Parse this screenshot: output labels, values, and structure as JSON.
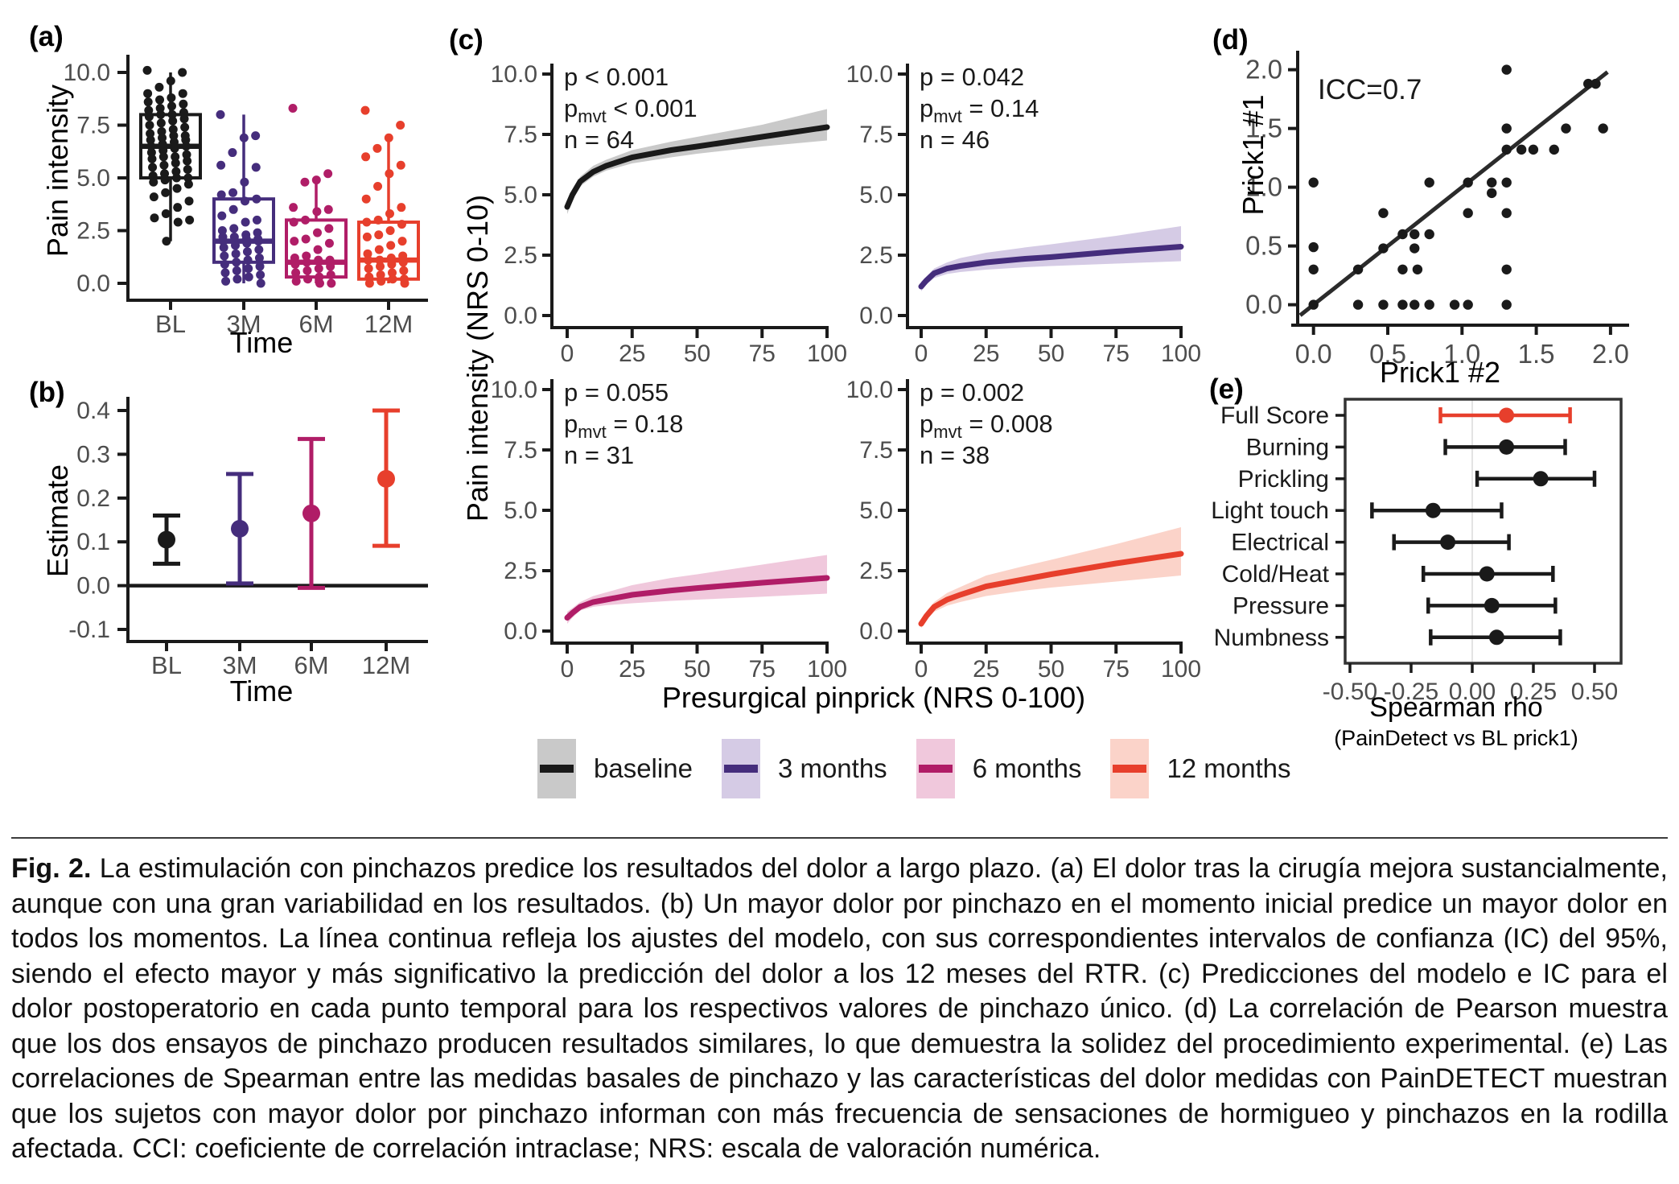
{
  "figure": {
    "legend": {
      "items": [
        {
          "label": "baseline",
          "line_color": "#1a1a1a",
          "band_color": "#c9c9c9"
        },
        {
          "label": "3 months",
          "line_color": "#452d7c",
          "band_color": "#d5cbe5"
        },
        {
          "label": "6 months",
          "line_color": "#b01d67",
          "band_color": "#f0c8dc"
        },
        {
          "label": "12 months",
          "line_color": "#e73f2c",
          "band_color": "#fbd3c9"
        }
      ]
    },
    "caption": {
      "label": "Fig. 2.",
      "text": "La estimulación con pinchazos predice los resultados del dolor a largo plazo. (a) El dolor tras la cirugía mejora sustancialmente, aunque con una gran variabilidad en los resultados. (b) Un mayor dolor por pinchazo en el momento inicial predice un mayor dolor en todos los momentos. La línea continua refleja los ajustes del modelo, con sus correspondientes intervalos de confianza (IC) del 95%, siendo el efecto mayor y más significativo la predicción del dolor a los 12 meses del RTR. (c) Predicciones del modelo e IC para el dolor postoperatorio en cada punto temporal para los respectivos valores de pinchazo único. (d) La correlación de Pearson muestra que los dos ensayos de pinchazo producen resultados similares, lo que demuestra la solidez del procedimiento experimental. (e) Las correlaciones de Spearman entre las medidas basales de pinchazo y las características del dolor medidas con PainDETECT muestran que los sujetos con mayor dolor por pinchazo informan con más frecuencia de sensaciones de hormigueo y pinchazos en la rodilla afectada. CCI: coeficiente de correlación intraclase; NRS: escala de valoración numérica."
    }
  },
  "chart_data": [
    {
      "id": "a",
      "tag": "(a)",
      "type": "box",
      "xlabel": "Time",
      "ylabel": "Pain intensity",
      "categories": [
        "BL",
        "3M",
        "6M",
        "12M"
      ],
      "ylim": [
        -0.5,
        10.5
      ],
      "yticks": [
        0,
        2.5,
        5,
        7.5,
        10
      ],
      "ytick_labels": [
        "0.0",
        "2.5",
        "5.0",
        "7.5",
        "10.0"
      ],
      "colors": [
        "#1a1a1a",
        "#452d7c",
        "#b01d67",
        "#e73f2c"
      ],
      "boxes": [
        {
          "label": "BL",
          "whislo": 2.0,
          "q1": 5.0,
          "med": 6.5,
          "q3": 8.0,
          "whishi": 10.0
        },
        {
          "label": "3M",
          "whislo": 0.0,
          "q1": 1.0,
          "med": 2.0,
          "q3": 4.0,
          "whishi": 8.0
        },
        {
          "label": "6M",
          "whislo": 0.0,
          "q1": 0.3,
          "med": 1.0,
          "q3": 3.0,
          "whishi": 5.0
        },
        {
          "label": "12M",
          "whislo": 0.0,
          "q1": 0.2,
          "med": 1.1,
          "q3": 2.9,
          "whishi": 6.9
        }
      ],
      "points": {
        "BL": [
          10.1,
          10.0,
          9.6,
          9.3,
          9.0,
          9.0,
          8.8,
          8.7,
          8.6,
          8.5,
          8.4,
          8.3,
          8.2,
          8.1,
          8.0,
          8.0,
          7.9,
          7.8,
          7.7,
          7.6,
          7.5,
          7.4,
          7.3,
          7.2,
          7.1,
          7.0,
          7.0,
          6.9,
          6.8,
          6.8,
          6.7,
          6.6,
          6.5,
          6.5,
          6.4,
          6.3,
          6.2,
          6.1,
          6.0,
          6.0,
          5.9,
          5.8,
          5.7,
          5.6,
          5.5,
          5.4,
          5.3,
          5.2,
          5.1,
          5.0,
          5.0,
          4.9,
          4.8,
          4.7,
          4.5,
          4.3,
          4.1,
          3.9,
          3.6,
          3.3,
          3.1,
          3.0,
          2.9,
          2.0
        ],
        "3M": [
          8.0,
          7.0,
          6.9,
          6.2,
          5.6,
          5.5,
          4.8,
          4.3,
          4.2,
          4.0,
          3.9,
          3.5,
          3.2,
          3.0,
          2.9,
          2.6,
          2.5,
          2.4,
          2.3,
          2.2,
          2.2,
          2.1,
          2.1,
          2.0,
          2.0,
          2.0,
          1.9,
          1.8,
          1.7,
          1.6,
          1.5,
          1.4,
          1.3,
          1.2,
          1.1,
          1.0,
          0.9,
          0.8,
          0.7,
          0.6,
          0.5,
          0.4,
          0.3,
          0.2,
          0.1,
          0.0
        ],
        "6M": [
          8.3,
          5.2,
          4.9,
          4.8,
          3.6,
          3.5,
          3.4,
          3.0,
          2.9,
          2.6,
          2.4,
          2.1,
          2.0,
          1.9,
          1.6,
          1.3,
          1.2,
          1.1,
          1.1,
          1.0,
          0.9,
          0.8,
          0.7,
          0.6,
          0.5,
          0.4,
          0.3,
          0.2,
          0.1,
          0.0,
          0.0
        ],
        "12M": [
          8.2,
          7.5,
          6.9,
          6.4,
          6.0,
          5.6,
          5.2,
          4.6,
          4.0,
          3.6,
          3.3,
          3.0,
          2.9,
          2.8,
          2.5,
          2.3,
          2.2,
          2.0,
          1.8,
          1.6,
          1.4,
          1.3,
          1.2,
          1.1,
          1.1,
          1.0,
          0.9,
          0.8,
          0.7,
          0.6,
          0.5,
          0.4,
          0.3,
          0.2,
          0.2,
          0.1,
          0.0,
          0.0
        ]
      }
    },
    {
      "id": "b",
      "tag": "(b)",
      "type": "pointrange",
      "xlabel": "Time",
      "ylabel": "Estimate",
      "categories": [
        "BL",
        "3M",
        "6M",
        "12M"
      ],
      "ylim": [
        -0.15,
        0.43
      ],
      "yticks": [
        -0.1,
        0,
        0.1,
        0.2,
        0.3,
        0.4
      ],
      "ytick_labels": [
        "-0.1",
        "0.0",
        "0.1",
        "0.2",
        "0.3",
        "0.4"
      ],
      "refline": 0,
      "colors": [
        "#1a1a1a",
        "#452d7c",
        "#b01d67",
        "#e73f2c"
      ],
      "values": [
        {
          "est": 0.105,
          "lo": 0.05,
          "hi": 0.16
        },
        {
          "est": 0.13,
          "lo": 0.005,
          "hi": 0.255
        },
        {
          "est": 0.165,
          "lo": -0.005,
          "hi": 0.335
        },
        {
          "est": 0.244,
          "lo": 0.091,
          "hi": 0.4
        }
      ]
    },
    {
      "id": "c",
      "tag": "(c)",
      "type": "line-ci",
      "xlabel": "Presurgical pinprick (NRS 0-100)",
      "ylabel": "Pain intensity (NRS 0-10)",
      "x": [
        0,
        2,
        5,
        10,
        15,
        25,
        40,
        50,
        75,
        100
      ],
      "xticks": [
        0,
        25,
        50,
        75,
        100
      ],
      "xtick_labels": [
        "0",
        "25",
        "50",
        "75",
        "100"
      ],
      "yticks": [
        0,
        2.5,
        5,
        7.5,
        10
      ],
      "ytick_labels": [
        "0.0",
        "2.5",
        "5.0",
        "7.5",
        "10.0"
      ],
      "subplots": [
        {
          "name": "baseline",
          "color": "#1a1a1a",
          "band": "#c9c9c9",
          "stats": [
            {
              "b": "p",
              "s": "",
              "r": " < 0.001"
            },
            {
              "b": "p",
              "s": "mvt",
              "r": " < 0.001"
            },
            {
              "b": "n",
              "s": "",
              "r": " = 64"
            }
          ],
          "y": [
            4.5,
            5.0,
            5.55,
            5.95,
            6.2,
            6.55,
            6.85,
            7.0,
            7.4,
            7.8
          ],
          "lo": [
            4.2,
            4.75,
            5.35,
            5.75,
            6.0,
            6.3,
            6.55,
            6.7,
            7.0,
            7.25
          ],
          "hi": [
            4.75,
            5.2,
            5.75,
            6.2,
            6.45,
            6.85,
            7.2,
            7.4,
            7.9,
            8.55
          ]
        },
        {
          "name": "3 months",
          "color": "#452d7c",
          "band": "#d5cbe5",
          "stats": [
            {
              "b": "p",
              "s": "",
              "r": " = 0.042"
            },
            {
              "b": "p",
              "s": "mvt",
              "r": " = 0.14"
            },
            {
              "b": "n",
              "s": "",
              "r": " = 46"
            }
          ],
          "y": [
            1.2,
            1.45,
            1.75,
            1.95,
            2.05,
            2.2,
            2.35,
            2.42,
            2.65,
            2.85
          ],
          "lo": [
            1.0,
            1.28,
            1.55,
            1.72,
            1.8,
            1.9,
            2.0,
            2.05,
            2.15,
            2.25
          ],
          "hi": [
            1.4,
            1.62,
            1.95,
            2.2,
            2.38,
            2.6,
            2.82,
            2.95,
            3.3,
            3.7
          ]
        },
        {
          "name": "6 months",
          "color": "#b01d67",
          "band": "#f0c8dc",
          "stats": [
            {
              "b": "p",
              "s": "",
              "r": " = 0.055"
            },
            {
              "b": "p",
              "s": "mvt",
              "r": " = 0.18"
            },
            {
              "b": "n",
              "s": "",
              "r": " = 31"
            }
          ],
          "y": [
            0.55,
            0.75,
            1.0,
            1.2,
            1.3,
            1.5,
            1.68,
            1.78,
            2.0,
            2.2
          ],
          "lo": [
            0.3,
            0.55,
            0.85,
            1.0,
            1.07,
            1.15,
            1.25,
            1.3,
            1.42,
            1.55
          ],
          "hi": [
            0.8,
            0.95,
            1.2,
            1.45,
            1.6,
            1.9,
            2.2,
            2.35,
            2.75,
            3.15
          ]
        },
        {
          "name": "12 months",
          "color": "#e73f2c",
          "band": "#fbd3c9",
          "stats": [
            {
              "b": "p",
              "s": "",
              "r": " = 0.002"
            },
            {
              "b": "p",
              "s": "mvt",
              "r": " = 0.008"
            },
            {
              "b": "n",
              "s": "",
              "r": " = 38"
            }
          ],
          "y": [
            0.3,
            0.62,
            1.0,
            1.3,
            1.5,
            1.85,
            2.15,
            2.35,
            2.8,
            3.2
          ],
          "lo": [
            0.12,
            0.45,
            0.8,
            1.05,
            1.2,
            1.45,
            1.68,
            1.8,
            2.05,
            2.3
          ],
          "hi": [
            0.5,
            0.82,
            1.2,
            1.58,
            1.82,
            2.3,
            2.7,
            2.95,
            3.6,
            4.3
          ]
        }
      ]
    },
    {
      "id": "d",
      "tag": "(d)",
      "type": "scatter",
      "xlabel": "Prick1 #2",
      "ylabel": "Prick1 #1",
      "annotation": "ICC=0.7",
      "xticks": [
        0,
        0.5,
        1,
        1.5,
        2
      ],
      "xtick_labels": [
        "0.0",
        "0.5",
        "1.0",
        "1.5",
        "2.0"
      ],
      "yticks": [
        0,
        0.5,
        1,
        1.5,
        2
      ],
      "ytick_labels": [
        "0.0",
        "0.5",
        "1.0",
        "1.5",
        "2.0"
      ],
      "point_color": "#1a1a1a",
      "points": [
        [
          0,
          0
        ],
        [
          0,
          0.3
        ],
        [
          0,
          0.49
        ],
        [
          0,
          1.04
        ],
        [
          0.3,
          0
        ],
        [
          0.3,
          0.3
        ],
        [
          0.47,
          0
        ],
        [
          0.47,
          0.48
        ],
        [
          0.47,
          0.78
        ],
        [
          0.6,
          0
        ],
        [
          0.6,
          0.3
        ],
        [
          0.6,
          0.6
        ],
        [
          0.68,
          0
        ],
        [
          0.7,
          0.3
        ],
        [
          0.68,
          0.48
        ],
        [
          0.68,
          0.6
        ],
        [
          0.78,
          0
        ],
        [
          0.78,
          0.6
        ],
        [
          0.78,
          1.04
        ],
        [
          0.95,
          0
        ],
        [
          1.04,
          0
        ],
        [
          1.04,
          0.78
        ],
        [
          1.04,
          1.04
        ],
        [
          1.2,
          0.95
        ],
        [
          1.2,
          1.04
        ],
        [
          1.3,
          0
        ],
        [
          1.3,
          0.3
        ],
        [
          1.3,
          0.78
        ],
        [
          1.3,
          1.04
        ],
        [
          1.3,
          1.32
        ],
        [
          1.3,
          1.5
        ],
        [
          1.3,
          2.0
        ],
        [
          1.4,
          1.32
        ],
        [
          1.48,
          1.32
        ],
        [
          1.62,
          1.32
        ],
        [
          1.7,
          1.5
        ],
        [
          1.85,
          1.88
        ],
        [
          1.9,
          1.88
        ],
        [
          1.95,
          1.5
        ]
      ],
      "fit_line": {
        "x1": -0.09,
        "y1": -0.09,
        "x2": 1.98,
        "y2": 1.98
      }
    },
    {
      "id": "e",
      "tag": "(e)",
      "type": "forest",
      "xlabel": "Spearman rho",
      "xlabel_sub": "(PainDetect vs BL prick1)",
      "categories": [
        "Full Score",
        "Burning",
        "Prickling",
        "Light touch",
        "Electrical",
        "Cold/Heat",
        "Pressure",
        "Numbness"
      ],
      "xticks": [
        -0.5,
        -0.25,
        0,
        0.25,
        0.5
      ],
      "xtick_labels": [
        "-0.50",
        "-0.25",
        "0.00",
        "0.25",
        "0.50"
      ],
      "values": [
        {
          "est": 0.14,
          "lo": -0.13,
          "hi": 0.4,
          "color": "#e73f2c"
        },
        {
          "est": 0.14,
          "lo": -0.11,
          "hi": 0.38,
          "color": "#1a1a1a"
        },
        {
          "est": 0.28,
          "lo": 0.02,
          "hi": 0.5,
          "color": "#1a1a1a"
        },
        {
          "est": -0.16,
          "lo": -0.41,
          "hi": 0.12,
          "color": "#1a1a1a"
        },
        {
          "est": -0.1,
          "lo": -0.32,
          "hi": 0.15,
          "color": "#1a1a1a"
        },
        {
          "est": 0.06,
          "lo": -0.2,
          "hi": 0.33,
          "color": "#1a1a1a"
        },
        {
          "est": 0.08,
          "lo": -0.18,
          "hi": 0.34,
          "color": "#1a1a1a"
        },
        {
          "est": 0.1,
          "lo": -0.17,
          "hi": 0.36,
          "color": "#1a1a1a"
        }
      ]
    }
  ]
}
